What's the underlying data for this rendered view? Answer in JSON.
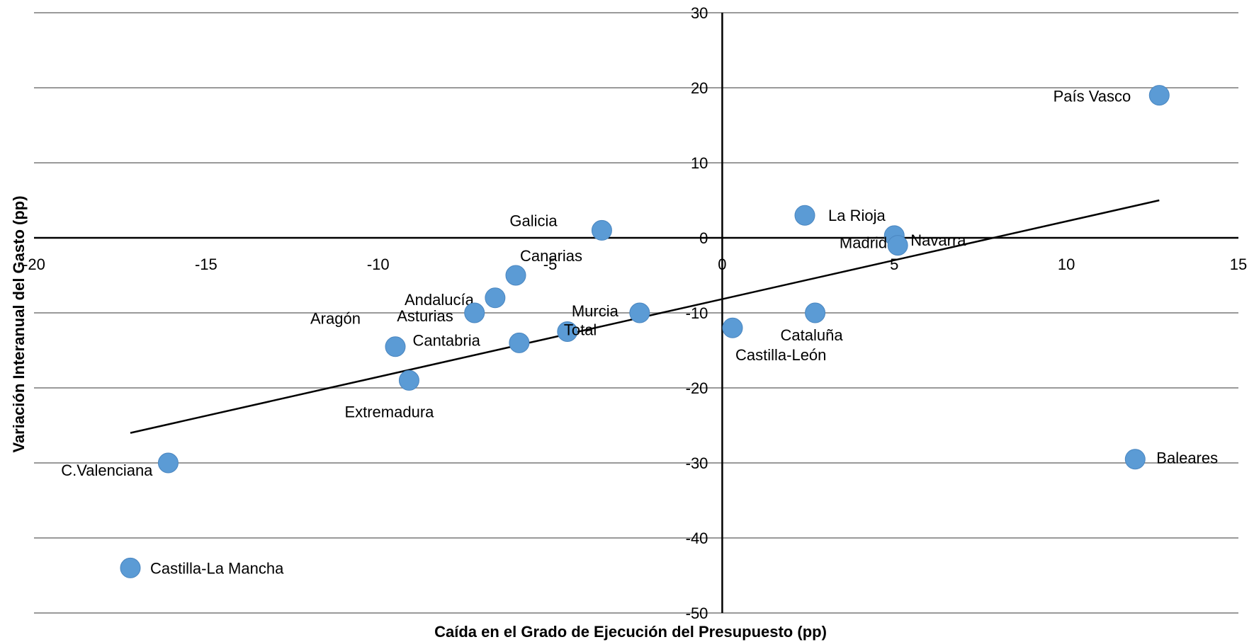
{
  "chart_data": {
    "type": "scatter",
    "title": "",
    "xlabel": "Caída en el Grado de Ejecución del Presupuesto (pp)",
    "ylabel": "Variación Interanual del Gasto (pp)",
    "xlim": [
      -20,
      15
    ],
    "ylim": [
      -50,
      30
    ],
    "xticks": [
      "-20",
      "-15",
      "-10",
      "-5",
      "0",
      "5",
      "10",
      "15"
    ],
    "yticks": [
      "30",
      "20",
      "10",
      "0",
      "-10",
      "-20",
      "-30",
      "-40",
      "-50"
    ],
    "grid": "horizontal",
    "point_color": "#5b9bd5",
    "points": [
      {
        "label": "País Vasco",
        "x": 12.7,
        "y": 19
      },
      {
        "label": "La Rioja",
        "x": 2.4,
        "y": 3
      },
      {
        "label": "Navarra",
        "x": 5.0,
        "y": 0.3
      },
      {
        "label": "Madrid",
        "x": 5.1,
        "y": -1
      },
      {
        "label": "Galicia",
        "x": -3.5,
        "y": 1
      },
      {
        "label": "Canarias",
        "x": -6.0,
        "y": -5
      },
      {
        "label": "Andalucía",
        "x": -6.6,
        "y": -8
      },
      {
        "label": "Asturias",
        "x": -7.2,
        "y": -10
      },
      {
        "label": "Murcia",
        "x": -2.4,
        "y": -10
      },
      {
        "label": "Total",
        "x": -4.5,
        "y": -12.5
      },
      {
        "label": "Cantabria",
        "x": -5.9,
        "y": -14
      },
      {
        "label": "Aragón",
        "x": -9.5,
        "y": -14.5
      },
      {
        "label": "Cataluña",
        "x": 2.7,
        "y": -10
      },
      {
        "label": "Castilla-León",
        "x": 0.3,
        "y": -12
      },
      {
        "label": "Extremadura",
        "x": -9.1,
        "y": -19
      },
      {
        "label": "C.Valenciana",
        "x": -16.1,
        "y": -30
      },
      {
        "label": "Baleares",
        "x": 12.0,
        "y": -29.5
      },
      {
        "label": "Castilla-La Mancha",
        "x": -17.2,
        "y": -44
      }
    ],
    "trendline": {
      "x": [
        -17.2,
        12.7
      ],
      "y": [
        -26,
        5
      ]
    }
  }
}
